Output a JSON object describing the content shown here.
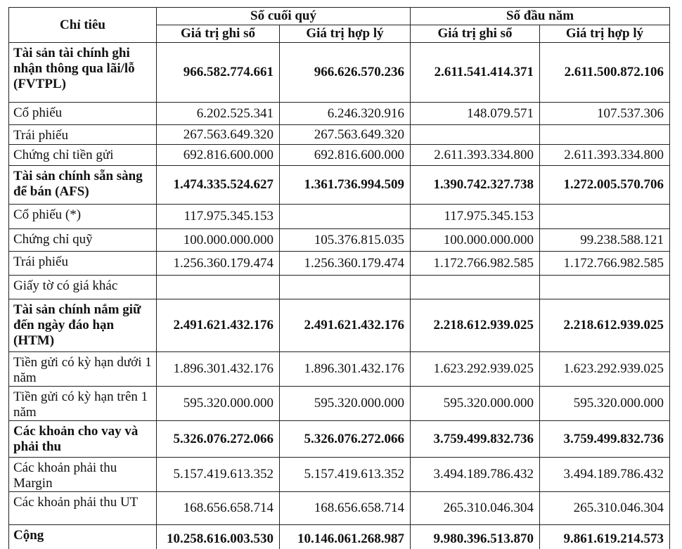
{
  "table": {
    "header": {
      "first": "Chỉ tiêu",
      "groups": [
        "Số cuối quý",
        "Số đầu năm"
      ],
      "columns": [
        "Giá trị ghi sổ",
        "Giá trị hợp lý",
        "Giá trị ghi sổ",
        "Giá trị hợp lý"
      ]
    },
    "rows": [
      {
        "label": "Tài sản tài chính ghi nhận thông qua lãi/lỗ (FVTPL)",
        "bold": true,
        "values": [
          "966.582.774.661",
          "966.626.570.236",
          "2.611.541.414.371",
          "2.611.500.872.106"
        ]
      },
      {
        "label": "Cổ phiếu",
        "bold": false,
        "values": [
          "6.202.525.341",
          "6.246.320.916",
          "148.079.571",
          "107.537.306"
        ]
      },
      {
        "label": "Trái phiếu",
        "bold": false,
        "values": [
          "267.563.649.320",
          "267.563.649.320",
          null,
          null
        ]
      },
      {
        "label": "Chứng chỉ tiền gửi",
        "bold": false,
        "values": [
          "692.816.600.000",
          "692.816.600.000",
          "2.611.393.334.800",
          "2.611.393.334.800"
        ]
      },
      {
        "label": "Tài sản chính sẵn sàng để bán (AFS)",
        "bold": true,
        "values": [
          "1.474.335.524.627",
          "1.361.736.994.509",
          "1.390.742.327.738",
          "1.272.005.570.706"
        ]
      },
      {
        "label": "Cổ phiếu (*)",
        "bold": false,
        "values": [
          "117.975.345.153",
          null,
          "117.975.345.153",
          null
        ]
      },
      {
        "label": "Chứng chỉ quỹ",
        "bold": false,
        "values": [
          "100.000.000.000",
          "105.376.815.035",
          "100.000.000.000",
          "99.238.588.121"
        ]
      },
      {
        "label": "Trái phiếu",
        "bold": false,
        "values": [
          "1.256.360.179.474",
          "1.256.360.179.474",
          "1.172.766.982.585",
          "1.172.766.982.585"
        ]
      },
      {
        "label": "Giấy tờ có giá khác",
        "bold": false,
        "values": [
          null,
          null,
          null,
          null
        ]
      },
      {
        "label": "Tài sản chính nắm giữ đến ngày đáo hạn (HTM)",
        "bold": true,
        "values": [
          "2.491.621.432.176",
          "2.491.621.432.176",
          "2.218.612.939.025",
          "2.218.612.939.025"
        ]
      },
      {
        "label": "Tiền gửi có kỳ hạn dưới 1 năm",
        "bold": false,
        "values": [
          "1.896.301.432.176",
          "1.896.301.432.176",
          "1.623.292.939.025",
          "1.623.292.939.025"
        ]
      },
      {
        "label": "Tiền gửi có kỳ hạn trên 1 năm",
        "bold": false,
        "values": [
          "595.320.000.000",
          "595.320.000.000",
          "595.320.000.000",
          "595.320.000.000"
        ]
      },
      {
        "label": "Các khoản cho vay và phải thu",
        "bold": true,
        "values": [
          "5.326.076.272.066",
          "5.326.076.272.066",
          "3.759.499.832.736",
          "3.759.499.832.736"
        ]
      },
      {
        "label": "Các khoản phải thu Margin",
        "bold": false,
        "values": [
          "5.157.419.613.352",
          "5.157.419.613.352",
          "3.494.189.786.432",
          "3.494.189.786.432"
        ]
      },
      {
        "label": "Các khoản phải thu UT",
        "bold": false,
        "values": [
          "168.656.658.714",
          "168.656.658.714",
          "265.310.046.304",
          "265.310.046.304"
        ]
      },
      {
        "label": "Cộng",
        "bold": true,
        "values": [
          "10.258.616.003.530",
          "10.146.061.268.987",
          "9.980.396.513.870",
          "9.861.619.214.573"
        ]
      }
    ]
  }
}
